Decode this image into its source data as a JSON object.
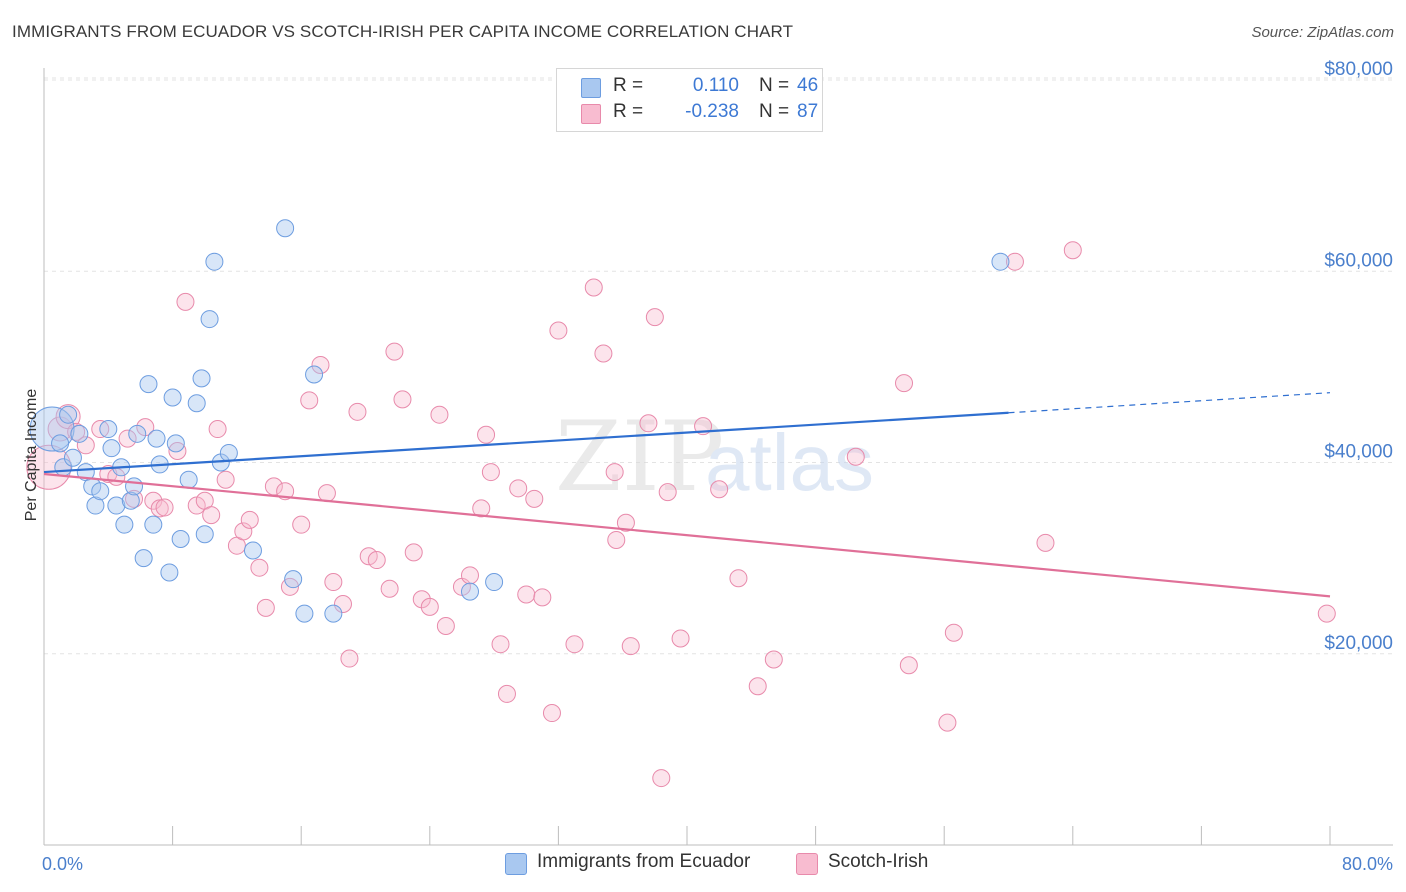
{
  "title": "IMMIGRANTS FROM ECUADOR VS SCOTCH-IRISH PER CAPITA INCOME CORRELATION CHART",
  "source": "Source: ZipAtlas.com",
  "watermark": {
    "zip": "ZIP",
    "atlas": "atlas"
  },
  "legend": {
    "r_label": "R =",
    "n_label": "N =",
    "rows": [
      {
        "series": "Immigrants from Ecuador",
        "r": "0.110",
        "n": "46",
        "color": "#a9c8f0",
        "stroke": "#6d9de0"
      },
      {
        "series": "Scotch-Irish",
        "r": "-0.238",
        "n": "87",
        "color": "#f8bcd0",
        "stroke": "#e88aab"
      }
    ]
  },
  "bottom_legend": [
    {
      "label": "Immigrants from Ecuador",
      "color": "#a9c8f0",
      "stroke": "#6d9de0"
    },
    {
      "label": "Scotch-Irish",
      "color": "#f8bcd0",
      "stroke": "#e88aab"
    }
  ],
  "chart_data": {
    "type": "scatter",
    "title": "IMMIGRANTS FROM ECUADOR VS SCOTCH-IRISH PER CAPITA INCOME CORRELATION CHART",
    "xlabel": "",
    "ylabel": "Per Capita Income",
    "xlim": [
      0,
      80
    ],
    "ylim": [
      0,
      82000
    ],
    "x_tick_labels": [
      "0.0%",
      "80.0%"
    ],
    "y_ticks": [
      20000,
      40000,
      60000,
      80000
    ],
    "y_tick_labels": [
      "$20,000",
      "$40,000",
      "$60,000",
      "$80,000"
    ],
    "grid": true,
    "legend_position": "top-center",
    "series": [
      {
        "name": "Immigrants from Ecuador",
        "color": "#6d9de0",
        "trend": {
          "x": [
            0,
            60
          ],
          "y": [
            39000,
            45200
          ],
          "dashed_extension": {
            "x": [
              60,
              80
            ],
            "y": [
              45200,
              47300
            ]
          },
          "line_color": "#2f6fd0"
        },
        "points": [
          [
            0.5,
            43500,
            22
          ],
          [
            1.0,
            42000,
            10
          ],
          [
            1.2,
            39500,
            10
          ],
          [
            1.5,
            45000,
            10
          ],
          [
            1.8,
            40500,
            10
          ],
          [
            2.2,
            43000,
            10
          ],
          [
            2.6,
            39000,
            10
          ],
          [
            3.0,
            37500,
            10
          ],
          [
            3.2,
            35500,
            10
          ],
          [
            3.5,
            37000,
            10
          ],
          [
            4.0,
            43500,
            10
          ],
          [
            4.2,
            41500,
            10
          ],
          [
            4.5,
            35500,
            10
          ],
          [
            4.8,
            39500,
            10
          ],
          [
            5.0,
            33500,
            10
          ],
          [
            5.4,
            36000,
            10
          ],
          [
            5.6,
            37500,
            10
          ],
          [
            5.8,
            43000,
            10
          ],
          [
            6.2,
            30000,
            10
          ],
          [
            6.5,
            48200,
            10
          ],
          [
            6.8,
            33500,
            10
          ],
          [
            7.0,
            42500,
            10
          ],
          [
            7.2,
            39800,
            10
          ],
          [
            7.8,
            28500,
            10
          ],
          [
            8.0,
            46800,
            10
          ],
          [
            8.2,
            42000,
            10
          ],
          [
            8.5,
            32000,
            10
          ],
          [
            9.0,
            38200,
            10
          ],
          [
            9.5,
            46200,
            10
          ],
          [
            9.8,
            48800,
            10
          ],
          [
            10.0,
            32500,
            10
          ],
          [
            10.3,
            55000,
            10
          ],
          [
            10.6,
            61000,
            10
          ],
          [
            11.0,
            40000,
            10
          ],
          [
            11.5,
            41000,
            10
          ],
          [
            13.0,
            30800,
            10
          ],
          [
            15.0,
            64500,
            10
          ],
          [
            15.5,
            27800,
            10
          ],
          [
            16.2,
            24200,
            10
          ],
          [
            16.8,
            49200,
            10
          ],
          [
            18.0,
            24200,
            10
          ],
          [
            26.5,
            26500,
            10
          ],
          [
            28.0,
            27500,
            10
          ],
          [
            59.5,
            61000,
            10
          ]
        ]
      },
      {
        "name": "Scotch-Irish",
        "color": "#e88aab",
        "trend": {
          "x": [
            0,
            80
          ],
          "y": [
            38800,
            26000
          ],
          "line_color": "#e07098"
        },
        "points": [
          [
            0.3,
            39500,
            22
          ],
          [
            1.0,
            43500,
            12
          ],
          [
            1.5,
            44800,
            12
          ],
          [
            2.0,
            43200,
            10
          ],
          [
            2.6,
            41800,
            10
          ],
          [
            3.5,
            43500,
            10
          ],
          [
            4.0,
            38800,
            10
          ],
          [
            4.5,
            38500,
            10
          ],
          [
            5.2,
            42500,
            10
          ],
          [
            5.6,
            36200,
            10
          ],
          [
            6.3,
            43700,
            10
          ],
          [
            6.8,
            36000,
            10
          ],
          [
            7.2,
            35200,
            10
          ],
          [
            7.5,
            35300,
            10
          ],
          [
            8.3,
            41200,
            10
          ],
          [
            8.8,
            56800,
            10
          ],
          [
            9.5,
            35500,
            10
          ],
          [
            10.0,
            36000,
            10
          ],
          [
            10.4,
            34500,
            10
          ],
          [
            10.8,
            43500,
            10
          ],
          [
            11.3,
            38200,
            10
          ],
          [
            12.0,
            31300,
            10
          ],
          [
            12.4,
            32800,
            10
          ],
          [
            12.8,
            34000,
            10
          ],
          [
            13.4,
            29000,
            10
          ],
          [
            13.8,
            24800,
            10
          ],
          [
            14.3,
            37500,
            10
          ],
          [
            15.0,
            37000,
            10
          ],
          [
            15.3,
            27000,
            10
          ],
          [
            16.0,
            33500,
            10
          ],
          [
            16.5,
            46500,
            10
          ],
          [
            17.2,
            50200,
            10
          ],
          [
            17.6,
            36800,
            10
          ],
          [
            18.0,
            27500,
            10
          ],
          [
            18.6,
            25200,
            10
          ],
          [
            19.0,
            19500,
            10
          ],
          [
            19.5,
            45300,
            10
          ],
          [
            20.2,
            30200,
            10
          ],
          [
            20.7,
            29800,
            10
          ],
          [
            21.5,
            26800,
            10
          ],
          [
            21.8,
            51600,
            10
          ],
          [
            22.3,
            46600,
            10
          ],
          [
            23.0,
            30600,
            10
          ],
          [
            23.5,
            25700,
            10
          ],
          [
            24.0,
            24900,
            10
          ],
          [
            24.6,
            45000,
            10
          ],
          [
            25.0,
            22900,
            10
          ],
          [
            26.0,
            27000,
            10
          ],
          [
            26.5,
            28200,
            10
          ],
          [
            27.2,
            35200,
            10
          ],
          [
            27.5,
            42900,
            10
          ],
          [
            27.8,
            39000,
            10
          ],
          [
            28.4,
            21000,
            10
          ],
          [
            28.8,
            15800,
            10
          ],
          [
            29.5,
            37300,
            10
          ],
          [
            30.0,
            26200,
            10
          ],
          [
            30.5,
            36200,
            10
          ],
          [
            31.0,
            25900,
            10
          ],
          [
            31.6,
            13800,
            10
          ],
          [
            32.0,
            53800,
            10
          ],
          [
            33.0,
            21000,
            10
          ],
          [
            34.2,
            58300,
            10
          ],
          [
            34.8,
            51400,
            10
          ],
          [
            35.5,
            39000,
            10
          ],
          [
            35.6,
            31900,
            10
          ],
          [
            36.2,
            33700,
            10
          ],
          [
            36.5,
            20800,
            10
          ],
          [
            37.6,
            44100,
            10
          ],
          [
            38.0,
            55200,
            10
          ],
          [
            38.4,
            7000,
            10
          ],
          [
            38.8,
            36900,
            10
          ],
          [
            39.6,
            21600,
            10
          ],
          [
            41.0,
            43800,
            10
          ],
          [
            42.0,
            37200,
            10
          ],
          [
            43.2,
            27900,
            10
          ],
          [
            44.4,
            16600,
            10
          ],
          [
            45.4,
            19400,
            10
          ],
          [
            50.5,
            40600,
            10
          ],
          [
            53.5,
            48300,
            10
          ],
          [
            53.8,
            18800,
            10
          ],
          [
            56.2,
            12800,
            10
          ],
          [
            56.6,
            22200,
            10
          ],
          [
            60.4,
            61000,
            10
          ],
          [
            62.3,
            31600,
            10
          ],
          [
            64.0,
            62200,
            10
          ],
          [
            79.8,
            24200,
            10
          ]
        ]
      }
    ]
  }
}
